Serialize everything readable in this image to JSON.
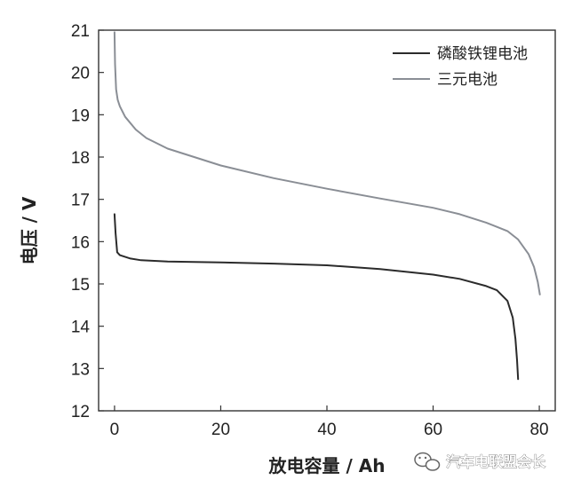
{
  "chart_data": {
    "type": "line",
    "title": "",
    "xlabel": "放电容量 / Ah",
    "ylabel": "电压 / V",
    "xlim": [
      -3,
      83
    ],
    "ylim": [
      12,
      21
    ],
    "x_ticks": [
      0,
      20,
      40,
      60,
      80
    ],
    "y_ticks": [
      12,
      13,
      14,
      15,
      16,
      17,
      18,
      19,
      20,
      21
    ],
    "grid": false,
    "legend_position": "top-right",
    "series": [
      {
        "name": "磷酸铁锂电池",
        "color": "#2b2b2b",
        "points": [
          [
            0,
            16.65
          ],
          [
            0.2,
            16.2
          ],
          [
            0.5,
            15.75
          ],
          [
            1,
            15.68
          ],
          [
            3,
            15.6
          ],
          [
            5,
            15.56
          ],
          [
            10,
            15.53
          ],
          [
            20,
            15.51
          ],
          [
            30,
            15.48
          ],
          [
            40,
            15.44
          ],
          [
            50,
            15.35
          ],
          [
            60,
            15.22
          ],
          [
            65,
            15.12
          ],
          [
            70,
            14.95
          ],
          [
            72,
            14.85
          ],
          [
            74,
            14.6
          ],
          [
            75,
            14.2
          ],
          [
            75.5,
            13.7
          ],
          [
            75.8,
            13.2
          ],
          [
            76,
            12.75
          ]
        ]
      },
      {
        "name": "三元电池",
        "color": "#8a8e95",
        "points": [
          [
            0,
            20.95
          ],
          [
            0.1,
            20.2
          ],
          [
            0.3,
            19.6
          ],
          [
            0.6,
            19.35
          ],
          [
            1,
            19.2
          ],
          [
            2,
            18.95
          ],
          [
            4,
            18.65
          ],
          [
            6,
            18.45
          ],
          [
            10,
            18.2
          ],
          [
            20,
            17.8
          ],
          [
            30,
            17.5
          ],
          [
            40,
            17.25
          ],
          [
            50,
            17.02
          ],
          [
            60,
            16.8
          ],
          [
            65,
            16.65
          ],
          [
            70,
            16.45
          ],
          [
            74,
            16.25
          ],
          [
            76,
            16.05
          ],
          [
            78,
            15.7
          ],
          [
            79,
            15.4
          ],
          [
            79.7,
            15.05
          ],
          [
            80.1,
            14.75
          ]
        ]
      }
    ]
  },
  "watermark": {
    "text": "汽车电联盟会长",
    "icon": "wechat-icon"
  }
}
